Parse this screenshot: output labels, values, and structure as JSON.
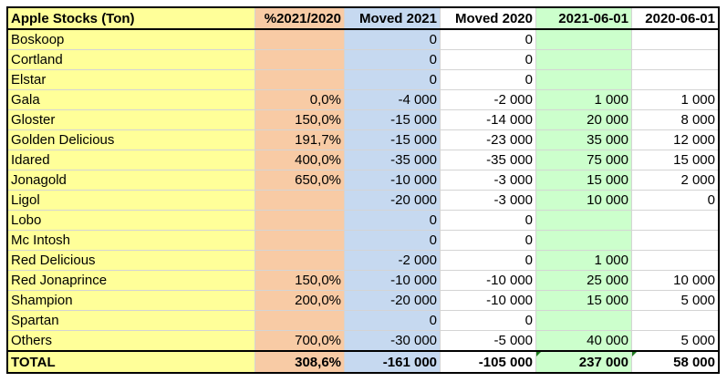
{
  "header": {
    "name": "Apple Stocks (Ton)",
    "pct": "%2021/2020",
    "moved_2021": "Moved 2021",
    "moved_2020": "Moved 2020",
    "stock_2021": "2021-06-01",
    "stock_2020": "2020-06-01"
  },
  "rows": [
    {
      "name": "Boskoop",
      "pct": "",
      "moved_2021": "0",
      "moved_2020": "0",
      "stock_2021": "",
      "stock_2020": ""
    },
    {
      "name": "Cortland",
      "pct": "",
      "moved_2021": "0",
      "moved_2020": "0",
      "stock_2021": "",
      "stock_2020": ""
    },
    {
      "name": "Elstar",
      "pct": "",
      "moved_2021": "0",
      "moved_2020": "0",
      "stock_2021": "",
      "stock_2020": ""
    },
    {
      "name": "Gala",
      "pct": "0,0%",
      "moved_2021": "-4 000",
      "moved_2020": "-2 000",
      "stock_2021": "1 000",
      "stock_2020": "1 000"
    },
    {
      "name": "Gloster",
      "pct": "150,0%",
      "moved_2021": "-15 000",
      "moved_2020": "-14 000",
      "stock_2021": "20 000",
      "stock_2020": "8 000"
    },
    {
      "name": "Golden Delicious",
      "pct": "191,7%",
      "moved_2021": "-15 000",
      "moved_2020": "-23 000",
      "stock_2021": "35 000",
      "stock_2020": "12 000"
    },
    {
      "name": "Idared",
      "pct": "400,0%",
      "moved_2021": "-35 000",
      "moved_2020": "-35 000",
      "stock_2021": "75 000",
      "stock_2020": "15 000"
    },
    {
      "name": "Jonagold",
      "pct": "650,0%",
      "moved_2021": "-10 000",
      "moved_2020": "-3 000",
      "stock_2021": "15 000",
      "stock_2020": "2 000"
    },
    {
      "name": "Ligol",
      "pct": "",
      "moved_2021": "-20 000",
      "moved_2020": "-3 000",
      "stock_2021": "10 000",
      "stock_2020": "0"
    },
    {
      "name": "Lobo",
      "pct": "",
      "moved_2021": "0",
      "moved_2020": "0",
      "stock_2021": "",
      "stock_2020": ""
    },
    {
      "name": "Mc Intosh",
      "pct": "",
      "moved_2021": "0",
      "moved_2020": "0",
      "stock_2021": "",
      "stock_2020": ""
    },
    {
      "name": "Red Delicious",
      "pct": "",
      "moved_2021": "-2 000",
      "moved_2020": "0",
      "stock_2021": "1 000",
      "stock_2020": ""
    },
    {
      "name": "Red Jonaprince",
      "pct": "150,0%",
      "moved_2021": "-10 000",
      "moved_2020": "-10 000",
      "stock_2021": "25 000",
      "stock_2020": "10 000"
    },
    {
      "name": "Shampion",
      "pct": "200,0%",
      "moved_2021": "-20 000",
      "moved_2020": "-10 000",
      "stock_2021": "15 000",
      "stock_2020": "5 000"
    },
    {
      "name": "Spartan",
      "pct": "",
      "moved_2021": "0",
      "moved_2020": "0",
      "stock_2021": "",
      "stock_2020": ""
    },
    {
      "name": "Others",
      "pct": "700,0%",
      "moved_2021": "-30 000",
      "moved_2020": "-5 000",
      "stock_2021": "40 000",
      "stock_2020": "5 000"
    }
  ],
  "total": {
    "name": "TOTAL",
    "pct": "308,6%",
    "moved_2021": "-161 000",
    "moved_2020": "-105 000",
    "stock_2021": "237 000",
    "stock_2020": "58 000"
  },
  "colors": {
    "name_col": "#ffff99",
    "pct_col": "#f8cba5",
    "moved_2021_col": "#c6d9f0",
    "stock_2021_col": "#ccffcc",
    "marker": "#1e7a1e"
  }
}
